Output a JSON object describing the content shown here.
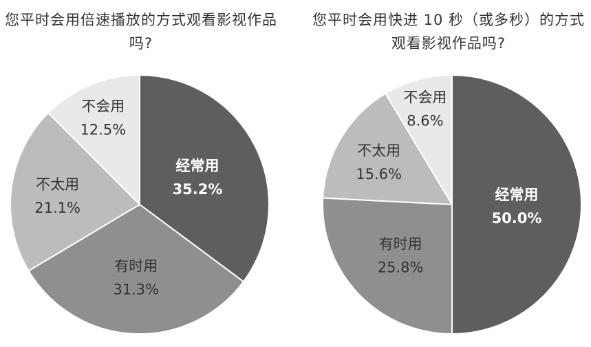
{
  "colors": {
    "dark": "#5e5e5e",
    "mid": "#8f8f8f",
    "light": "#bcbcbc",
    "lightest": "#e9e9e9",
    "edge": "#ffffff",
    "text_dark": "#333333",
    "text_light": "#ffffff"
  },
  "chart_data": [
    {
      "type": "pie",
      "title": "您平时会用倍速播放的方式观看影视作品吗?",
      "slices": [
        {
          "label": "经常用",
          "value": 35.2,
          "display": "35.2%",
          "color": "#5e5e5e",
          "text_color": "#ffffff",
          "bold": true
        },
        {
          "label": "有时用",
          "value": 31.3,
          "display": "31.3%",
          "color": "#8f8f8f",
          "text_color": "#333333",
          "bold": false
        },
        {
          "label": "不太用",
          "value": 21.1,
          "display": "21.1%",
          "color": "#bcbcbc",
          "text_color": "#333333",
          "bold": false
        },
        {
          "label": "不会用",
          "value": 12.5,
          "display": "12.5%",
          "color": "#e9e9e9",
          "text_color": "#333333",
          "bold": false
        }
      ],
      "start": "top",
      "direction": "clockwise",
      "legend": "none"
    },
    {
      "type": "pie",
      "title": "您平时会用快进 10 秒（或多秒）的方式观看影视作品吗?",
      "slices": [
        {
          "label": "经常用",
          "value": 50.0,
          "display": "50.0%",
          "color": "#5e5e5e",
          "text_color": "#ffffff",
          "bold": true
        },
        {
          "label": "有时用",
          "value": 25.8,
          "display": "25.8%",
          "color": "#8f8f8f",
          "text_color": "#333333",
          "bold": false
        },
        {
          "label": "不太用",
          "value": 15.6,
          "display": "15.6%",
          "color": "#bcbcbc",
          "text_color": "#333333",
          "bold": false
        },
        {
          "label": "不会用",
          "value": 8.6,
          "display": "8.6%",
          "color": "#e9e9e9",
          "text_color": "#333333",
          "bold": false
        }
      ],
      "start": "top",
      "direction": "clockwise",
      "legend": "none"
    }
  ]
}
